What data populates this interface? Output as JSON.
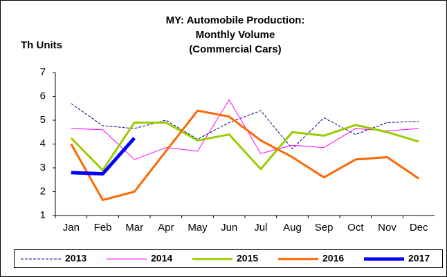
{
  "chart_data": {
    "type": "line",
    "title": [
      "MY: Automobile  Production:",
      "Monthly Volume",
      "(Commercial Cars)"
    ],
    "y_label": "Th Units",
    "categories": [
      "Jan",
      "Feb",
      "Mar",
      "Apr",
      "May",
      "Jun",
      "Jul",
      "Aug",
      "Sep",
      "Oct",
      "Nov",
      "Dec"
    ],
    "ylim": [
      1,
      7
    ],
    "yticks": [
      1,
      2,
      3,
      4,
      5,
      6,
      7
    ],
    "grid": false,
    "legend": "bottom",
    "series": [
      {
        "name": "2013",
        "color": "#000080",
        "dash": true,
        "width": 1,
        "values": [
          5.7,
          4.77,
          4.65,
          5.0,
          4.2,
          4.9,
          5.4,
          3.8,
          5.1,
          4.4,
          4.9,
          4.95
        ]
      },
      {
        "name": "2014",
        "color": "#ff00ff",
        "width": 1,
        "values": [
          4.65,
          4.6,
          3.35,
          3.85,
          3.7,
          5.85,
          3.6,
          3.95,
          3.85,
          4.65,
          4.55,
          4.65
        ]
      },
      {
        "name": "2015",
        "color": "#99cc00",
        "width": 3,
        "values": [
          4.25,
          2.9,
          4.9,
          4.9,
          4.15,
          4.4,
          2.95,
          4.5,
          4.35,
          4.8,
          4.5,
          4.1
        ]
      },
      {
        "name": "2016",
        "color": "#ff6600",
        "width": 3,
        "values": [
          4.0,
          1.65,
          2.0,
          3.7,
          5.4,
          5.15,
          4.15,
          3.45,
          2.6,
          3.35,
          3.45,
          2.55
        ]
      },
      {
        "name": "2017",
        "color": "#0000ff",
        "width": 5,
        "values": [
          2.8,
          2.75,
          4.25,
          null,
          null,
          null,
          null,
          null,
          null,
          null,
          null,
          null
        ]
      }
    ]
  }
}
